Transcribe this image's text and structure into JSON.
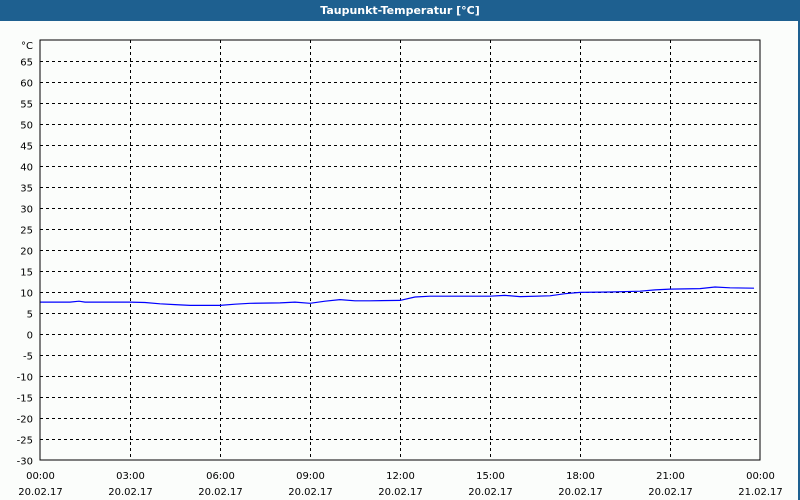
{
  "window": {
    "title": "Taupunkt-Temperatur [°C]"
  },
  "chart_data": {
    "type": "line",
    "title": "Taupunkt-Temperatur [°C]",
    "ylabel": "°C",
    "ylim": [
      -30,
      70
    ],
    "yticks": [
      65,
      60,
      55,
      50,
      45,
      40,
      35,
      30,
      25,
      20,
      15,
      10,
      5,
      0,
      -5,
      -10,
      -15,
      -20,
      -25,
      -30
    ],
    "xticks": [
      {
        "time": "00:00",
        "date": "20.02.17"
      },
      {
        "time": "03:00",
        "date": "20.02.17"
      },
      {
        "time": "06:00",
        "date": "20.02.17"
      },
      {
        "time": "09:00",
        "date": "20.02.17"
      },
      {
        "time": "12:00",
        "date": "20.02.17"
      },
      {
        "time": "15:00",
        "date": "20.02.17"
      },
      {
        "time": "18:00",
        "date": "20.02.17"
      },
      {
        "time": "21:00",
        "date": "20.02.17"
      },
      {
        "time": "00:00",
        "date": "21.02.17"
      }
    ],
    "grid": true,
    "line_color": "#0000ff",
    "series": [
      {
        "x_hours": [
          0,
          1,
          1.3,
          1.5,
          2,
          3,
          3.5,
          4,
          4.5,
          5,
          6,
          6.5,
          7,
          8,
          8.5,
          9,
          9.5,
          10,
          10.5,
          11,
          12,
          12.5,
          13,
          14,
          15,
          15.5,
          16,
          17,
          17.5,
          18,
          19,
          20,
          20.5,
          21,
          22,
          22.5,
          23,
          23.8
        ],
        "values": [
          7.6,
          7.6,
          7.8,
          7.6,
          7.6,
          7.6,
          7.5,
          7.2,
          7.0,
          6.8,
          6.8,
          7.1,
          7.3,
          7.4,
          7.6,
          7.3,
          7.8,
          8.2,
          7.9,
          7.9,
          8.0,
          8.8,
          9.0,
          9.0,
          9.0,
          9.2,
          8.9,
          9.1,
          9.6,
          9.9,
          10.0,
          10.2,
          10.5,
          10.7,
          10.8,
          11.2,
          11.0,
          10.9
        ]
      }
    ]
  }
}
